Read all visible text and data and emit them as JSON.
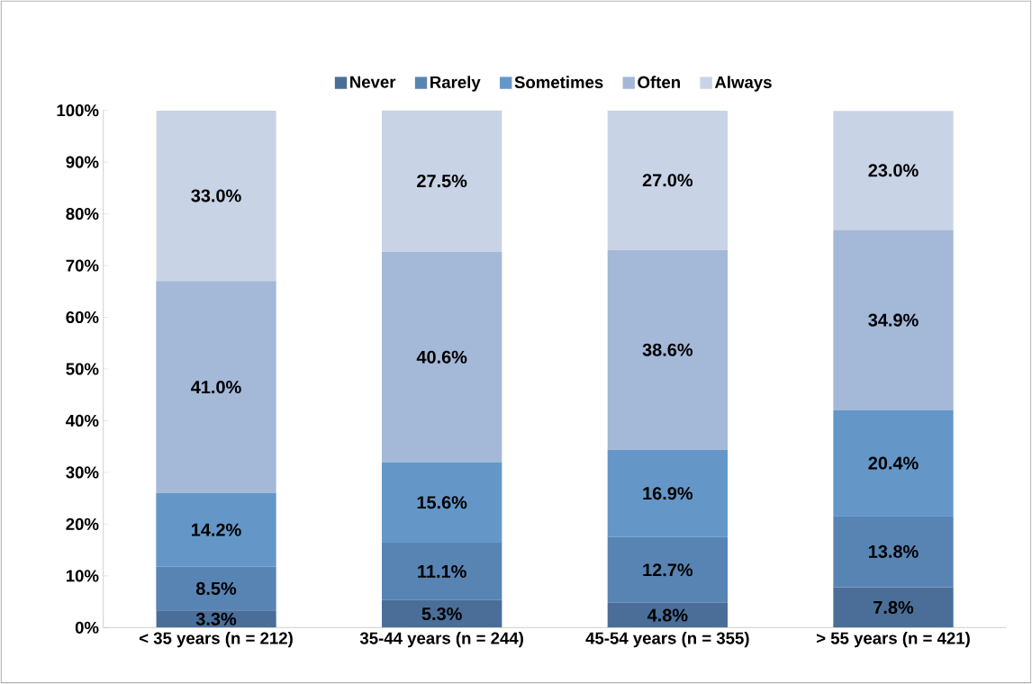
{
  "chart_data": {
    "type": "bar",
    "stacked": true,
    "categories": [
      "< 35 years (n = 212)",
      "35-44 years (n = 244)",
      "45-54 years (n = 355)",
      "> 55 years (n = 421)"
    ],
    "series": [
      {
        "name": "Never",
        "color": "#4a6e98",
        "values": [
          3.3,
          5.3,
          4.8,
          7.8
        ],
        "value_labels": [
          "3.3%",
          "5.3%",
          "4.8%",
          "7.8%"
        ]
      },
      {
        "name": "Rarely",
        "color": "#5884b4",
        "values": [
          8.5,
          11.1,
          12.7,
          13.8
        ],
        "value_labels": [
          "8.5%",
          "11.1%",
          "12.7%",
          "13.8%"
        ]
      },
      {
        "name": "Sometimes",
        "color": "#6497c8",
        "values": [
          14.2,
          15.6,
          16.9,
          20.4
        ],
        "value_labels": [
          "14.2%",
          "15.6%",
          "16.9%",
          "20.4%"
        ]
      },
      {
        "name": "Often",
        "color": "#a4b8d8",
        "values": [
          41.0,
          40.6,
          38.6,
          34.9
        ],
        "value_labels": [
          "41.0%",
          "40.6%",
          "38.6%",
          "34.9%"
        ]
      },
      {
        "name": "Always",
        "color": "#c9d3e6",
        "values": [
          33.0,
          27.5,
          27.0,
          23.0
        ],
        "value_labels": [
          "33.0%",
          "27.5%",
          "27.0%",
          "23.0%"
        ]
      }
    ],
    "ylim": [
      0,
      100
    ],
    "yticks": [
      {
        "value": 0,
        "label": "0%"
      },
      {
        "value": 10,
        "label": "10%"
      },
      {
        "value": 20,
        "label": "20%"
      },
      {
        "value": 30,
        "label": "30%"
      },
      {
        "value": 40,
        "label": "40%"
      },
      {
        "value": 50,
        "label": "50%"
      },
      {
        "value": 60,
        "label": "60%"
      },
      {
        "value": 70,
        "label": "70%"
      },
      {
        "value": 80,
        "label": "80%"
      },
      {
        "value": 90,
        "label": "90%"
      },
      {
        "value": 100,
        "label": "100%"
      }
    ],
    "legend": "top",
    "grid": false
  }
}
